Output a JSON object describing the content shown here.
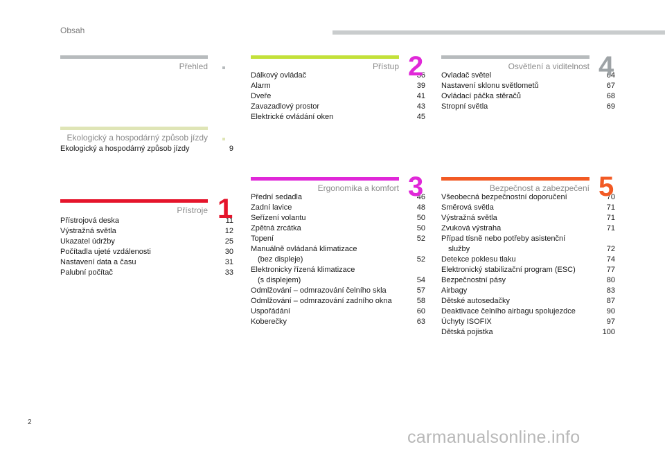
{
  "header": {
    "title": "Obsah"
  },
  "page_number": "2",
  "watermark": "carmanualsonline.info",
  "colors": {
    "grey": "#b7bbbd",
    "eco": "#dfe5b6",
    "red": "#e5142b",
    "green": "#c3e13a",
    "magenta": "#e028d8",
    "orange": "#f25a24",
    "gold": "#d9c06a",
    "num_grey": "#9ea3a6"
  },
  "sections": {
    "prehled": {
      "title": "Přehled",
      "entries": []
    },
    "eko": {
      "title": "Ekologický a hospodárný způsob jízdy",
      "entries": [
        {
          "label": "Ekologický a hospodárný způsob jízdy",
          "page": "9"
        }
      ]
    },
    "pristroje": {
      "title": "Přístroje",
      "number": "1",
      "entries": [
        {
          "label": "Přístrojová deska",
          "page": "11"
        },
        {
          "label": "Výstražná světla",
          "page": "12"
        },
        {
          "label": "Ukazatel údržby",
          "page": "25"
        },
        {
          "label": "Počítadla ujeté vzdálenosti",
          "page": "30"
        },
        {
          "label": "Nastavení data a času",
          "page": "31"
        },
        {
          "label": "Palubní počítač",
          "page": "33"
        }
      ]
    },
    "pristup": {
      "title": "Přístup",
      "number": "2",
      "entries": [
        {
          "label": "Dálkový ovládač",
          "page": "36"
        },
        {
          "label": "Alarm",
          "page": "39"
        },
        {
          "label": "Dveře",
          "page": "41"
        },
        {
          "label": "Zavazadlový prostor",
          "page": "43"
        },
        {
          "label": "Elektrické ovládání oken",
          "page": "45"
        }
      ]
    },
    "ergonomika": {
      "title": "Ergonomika a komfort",
      "number": "3",
      "entries": [
        {
          "label": "Přední sedadla",
          "page": "46"
        },
        {
          "label": "Zadní lavice",
          "page": "48"
        },
        {
          "label": "Seřízení volantu",
          "page": "50"
        },
        {
          "label": "Zpětná zrcátka",
          "page": "50"
        },
        {
          "label": "Topení",
          "page": "52"
        },
        {
          "label": "Manuálně ovládaná klimatizace",
          "sub": "(bez displeje)",
          "page": "52"
        },
        {
          "label": "Elektronicky řízená klimatizace",
          "sub": "(s displejem)",
          "page": "54"
        },
        {
          "label": "Odmlžování – odmrazování čelního skla",
          "page": "57"
        },
        {
          "label": "Odmlžování – odmrazování zadního okna",
          "page": "58"
        },
        {
          "label": "Uspořádání",
          "page": "60"
        },
        {
          "label": "Koberečky",
          "page": "63"
        }
      ]
    },
    "osvetleni": {
      "title": "Osvětlení a viditelnost",
      "number": "4",
      "entries": [
        {
          "label": "Ovladač světel",
          "page": "64"
        },
        {
          "label": "Nastavení sklonu světlometů",
          "page": "67"
        },
        {
          "label": "Ovládací páčka stěračů",
          "page": "68"
        },
        {
          "label": "Stropní světla",
          "page": "69"
        }
      ]
    },
    "bezpecnost": {
      "title": "Bezpečnost a zabezpečení",
      "number": "5",
      "entries": [
        {
          "label": "Všeobecná bezpečnostní doporučení",
          "page": "70"
        },
        {
          "label": "Směrová světla",
          "page": "71"
        },
        {
          "label": "Výstražná světla",
          "page": "71"
        },
        {
          "label": "Zvuková výstraha",
          "page": "71"
        },
        {
          "label": "Případ tísně nebo potřeby asistenční",
          "sub": "služby",
          "page": "72"
        },
        {
          "label": "Detekce poklesu tlaku",
          "page": "74"
        },
        {
          "label": "Elektronický stabilizační program (ESC)",
          "page": "77"
        },
        {
          "label": "Bezpečnostní pásy",
          "page": "80"
        },
        {
          "label": "Airbagy",
          "page": "83"
        },
        {
          "label": "Dětské autosedačky",
          "page": "87"
        },
        {
          "label": "Deaktivace čelního airbagu spolujezdce",
          "page": "90"
        },
        {
          "label": "Úchyty ISOFIX",
          "page": "97"
        },
        {
          "label": "Dětská pojistka",
          "page": "100"
        }
      ]
    }
  }
}
